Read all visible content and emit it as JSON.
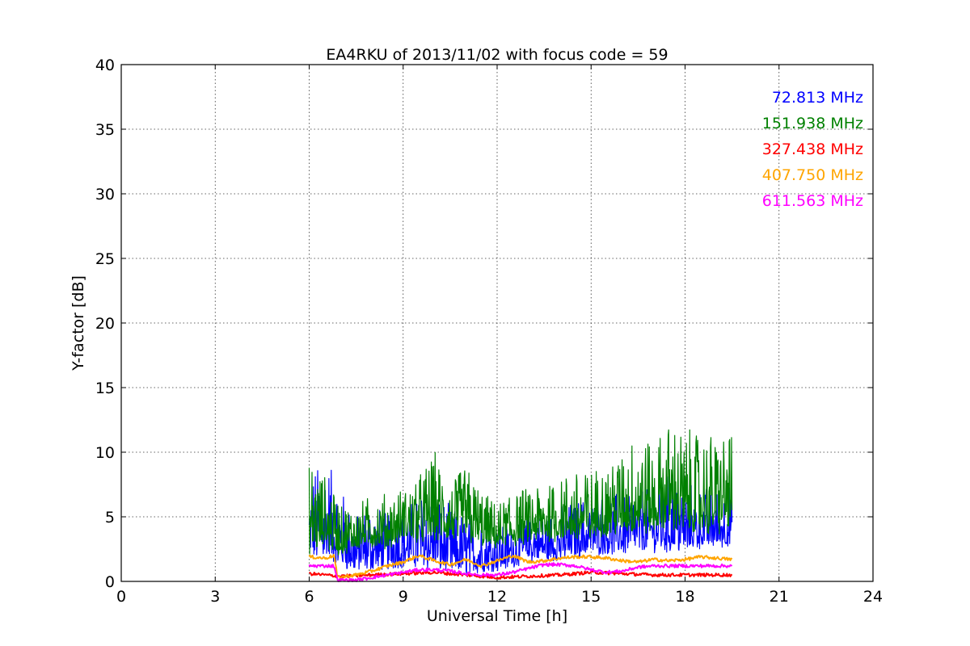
{
  "chart_data": {
    "type": "line",
    "title": "EA4RKU of 2013/11/02 with focus code = 59",
    "xlabel": "Universal Time [h]",
    "ylabel": "Y-factor [dB]",
    "xlim": [
      0,
      24
    ],
    "ylim": [
      0,
      40
    ],
    "xticks": [
      0,
      3,
      6,
      9,
      12,
      15,
      18,
      21,
      24
    ],
    "yticks": [
      0,
      5,
      10,
      15,
      20,
      25,
      30,
      35,
      40
    ],
    "grid": true,
    "legend_position": "top-right",
    "series": [
      {
        "name": "72.813 MHz",
        "color": "#0000ff",
        "style": "noisy",
        "x": [
          6.0,
          6.5,
          7.0,
          7.5,
          8.0,
          8.5,
          9.0,
          9.5,
          10.0,
          10.5,
          11.0,
          11.5,
          12.0,
          12.5,
          13.0,
          13.5,
          14.0,
          14.5,
          15.0,
          15.5,
          16.0,
          16.5,
          17.0,
          17.5,
          18.0,
          18.5,
          19.0,
          19.5
        ],
        "low": [
          1.5,
          1.5,
          1.0,
          0.6,
          0.8,
          0.8,
          1.0,
          1.0,
          0.8,
          0.6,
          0.5,
          0.5,
          0.8,
          1.0,
          1.5,
          1.5,
          1.5,
          1.8,
          2.0,
          2.0,
          2.0,
          2.2,
          2.2,
          2.2,
          2.2,
          2.5,
          2.5,
          2.5
        ],
        "high": [
          8.5,
          10.5,
          7.5,
          5.5,
          6.5,
          5.5,
          6.5,
          7.0,
          7.5,
          6.0,
          5.5,
          5.5,
          4.5,
          5.0,
          5.5,
          5.5,
          6.0,
          6.5,
          7.0,
          7.5,
          7.0,
          7.5,
          8.0,
          8.5,
          8.0,
          7.5,
          7.5,
          8.0
        ]
      },
      {
        "name": "151.938 MHz",
        "color": "#008000",
        "style": "noisy",
        "x": [
          6.0,
          6.5,
          7.0,
          7.5,
          8.0,
          8.5,
          9.0,
          9.5,
          10.0,
          10.5,
          11.0,
          11.5,
          12.0,
          12.5,
          13.0,
          13.5,
          14.0,
          14.5,
          15.0,
          15.5,
          16.0,
          16.5,
          17.0,
          17.5,
          18.0,
          18.5,
          19.0,
          19.5
        ],
        "low": [
          2.0,
          2.5,
          1.8,
          2.5,
          2.5,
          2.5,
          3.0,
          3.0,
          3.0,
          3.0,
          3.0,
          2.5,
          2.5,
          2.5,
          2.8,
          3.0,
          3.0,
          3.0,
          3.0,
          3.5,
          3.5,
          3.5,
          3.5,
          4.0,
          3.5,
          3.5,
          3.5,
          4.0
        ],
        "high": [
          10.0,
          8.5,
          6.5,
          6.0,
          7.0,
          7.0,
          7.5,
          8.5,
          10.5,
          8.0,
          9.5,
          7.5,
          6.0,
          7.5,
          7.5,
          8.0,
          8.5,
          9.0,
          9.0,
          9.5,
          10.5,
          12.5,
          11.0,
          13.0,
          12.0,
          12.0,
          12.0,
          12.0
        ]
      },
      {
        "name": "327.438 MHz",
        "color": "#ff0000",
        "style": "smooth",
        "x": [
          6.0,
          6.5,
          7.0,
          8.0,
          9.0,
          10.0,
          11.0,
          12.0,
          13.0,
          14.0,
          15.0,
          16.0,
          17.0,
          18.0,
          19.0,
          19.5
        ],
        "y": [
          0.6,
          0.5,
          0.4,
          0.5,
          0.6,
          0.7,
          0.5,
          0.3,
          0.4,
          0.5,
          0.7,
          0.6,
          0.5,
          0.5,
          0.5,
          0.5
        ]
      },
      {
        "name": "407.750 MHz",
        "color": "#ffa500",
        "style": "smooth",
        "x": [
          6.0,
          6.5,
          6.8,
          6.9,
          7.5,
          8.0,
          8.5,
          9.0,
          9.5,
          10.0,
          10.5,
          11.0,
          11.5,
          12.0,
          12.5,
          13.0,
          13.5,
          14.0,
          14.5,
          15.0,
          15.5,
          16.0,
          16.5,
          17.0,
          17.5,
          18.0,
          18.5,
          19.0,
          19.5
        ],
        "y": [
          1.9,
          1.8,
          2.0,
          0.3,
          0.5,
          0.8,
          1.2,
          1.5,
          2.0,
          1.6,
          1.3,
          1.7,
          1.2,
          1.6,
          2.0,
          1.5,
          1.6,
          1.8,
          1.9,
          1.9,
          1.8,
          1.6,
          1.5,
          1.7,
          1.6,
          1.7,
          1.9,
          1.8,
          1.7
        ]
      },
      {
        "name": "611.563 MHz",
        "color": "#ff00ff",
        "style": "smooth",
        "x": [
          6.0,
          6.5,
          6.8,
          6.9,
          7.5,
          8.0,
          8.5,
          9.0,
          9.5,
          10.0,
          10.5,
          11.0,
          11.5,
          12.0,
          12.5,
          13.0,
          13.5,
          14.0,
          14.5,
          15.0,
          15.5,
          16.0,
          16.5,
          17.0,
          17.5,
          18.0,
          18.5,
          19.0,
          19.5
        ],
        "y": [
          1.2,
          1.2,
          1.2,
          0.1,
          0.1,
          0.3,
          0.5,
          0.7,
          0.9,
          0.9,
          0.8,
          0.6,
          0.5,
          0.5,
          0.7,
          1.0,
          1.3,
          1.3,
          1.2,
          0.9,
          0.7,
          0.8,
          1.1,
          1.2,
          1.2,
          1.2,
          1.2,
          1.2,
          1.2
        ]
      }
    ]
  }
}
